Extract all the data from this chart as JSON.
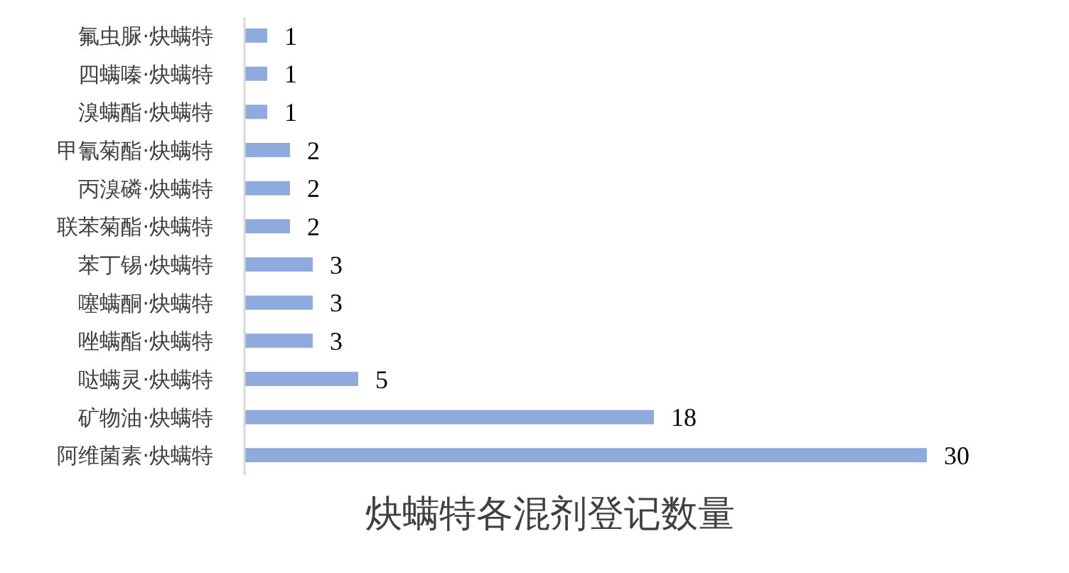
{
  "chart_data": {
    "type": "bar",
    "orientation": "horizontal",
    "title": "炔螨特各混剂登记数量",
    "categories": [
      "氟虫脲·炔螨特",
      "四螨嗪·炔螨特",
      "溴螨酯·炔螨特",
      "甲氰菊酯·炔螨特",
      "丙溴磷·炔螨特",
      "联苯菊酯·炔螨特",
      "苯丁锡·炔螨特",
      "噻螨酮·炔螨特",
      "唑螨酯·炔螨特",
      "哒螨灵·炔螨特",
      "矿物油·炔螨特",
      "阿维菌素·炔螨特"
    ],
    "values": [
      1,
      1,
      1,
      2,
      2,
      2,
      3,
      3,
      3,
      5,
      18,
      30
    ],
    "color": "#8faadc",
    "data_labels": true,
    "tick_labels": "y"
  }
}
